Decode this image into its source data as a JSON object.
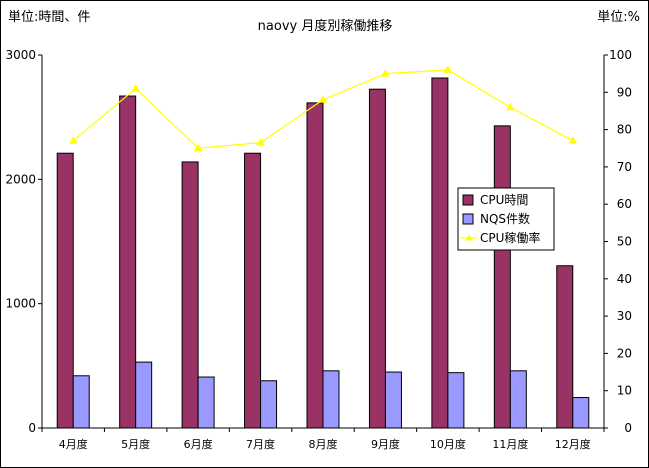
{
  "chart_data": {
    "type": "bar",
    "title": "naovy 月度別稼働推移",
    "left_unit_label": "単位:時間、件",
    "right_unit_label": "単位:%",
    "categories": [
      "4月度",
      "5月度",
      "6月度",
      "7月度",
      "8月度",
      "9月度",
      "10月度",
      "11月度",
      "12月度"
    ],
    "ylim": [
      0,
      3000
    ],
    "yticks": [
      0,
      1000,
      2000,
      3000
    ],
    "y2lim": [
      0,
      100
    ],
    "y2ticks": [
      0,
      10,
      20,
      30,
      40,
      50,
      60,
      70,
      80,
      90,
      100
    ],
    "grid": false,
    "legend_position": "right",
    "series": [
      {
        "name": "CPU時間",
        "kind": "bar",
        "axis": "left",
        "color": "#993366",
        "values": [
          2210,
          2670,
          2140,
          2210,
          2615,
          2725,
          2815,
          2430,
          1305
        ]
      },
      {
        "name": "NQS件数",
        "kind": "bar",
        "axis": "left",
        "color": "#9999ff",
        "values": [
          420,
          530,
          410,
          380,
          460,
          450,
          445,
          460,
          245
        ]
      },
      {
        "name": "CPU稼働率",
        "kind": "line",
        "axis": "right",
        "color": "#ffff00",
        "values": [
          77,
          91,
          75,
          76.5,
          88,
          95,
          96,
          86,
          77
        ]
      }
    ]
  }
}
